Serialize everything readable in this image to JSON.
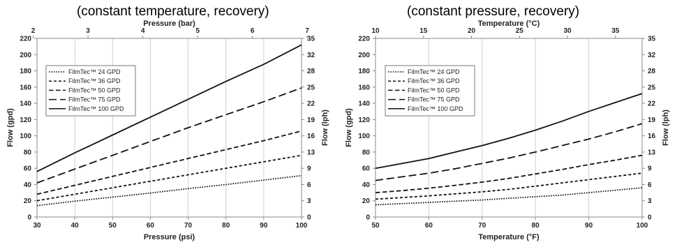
{
  "captions": {
    "left": "(constant temperature, recovery)",
    "right": "(constant pressure, recovery)"
  },
  "chart_data": [
    {
      "type": "line",
      "title": "(constant temperature, recovery)",
      "xlabel": "Pressure (psi)",
      "x2label": "Pressure (bar)",
      "ylabel": "Flow (gpd)",
      "y2label": "Flow (lph)",
      "xlim": [
        30,
        100
      ],
      "ylim": [
        0,
        220
      ],
      "xticks": [
        30,
        40,
        50,
        60,
        70,
        80,
        90,
        100
      ],
      "yticks": [
        0,
        20,
        40,
        60,
        80,
        100,
        120,
        140,
        160,
        180,
        200,
        220
      ],
      "x2ticks": [
        "2",
        "3",
        "4",
        "5",
        "6",
        "7"
      ],
      "x2tick_at_x": [
        29.0,
        43.5,
        58.0,
        72.5,
        87.0,
        101.5
      ],
      "y2ticks": [
        "0",
        "3",
        "6",
        "9",
        "13",
        "16",
        "19",
        "22",
        "25",
        "28",
        "32",
        "35"
      ],
      "grid": "vertical",
      "legend_position": "upper-left",
      "x": [
        30,
        40,
        50,
        60,
        70,
        80,
        90,
        100
      ],
      "series": [
        {
          "name": "FilmTec™ 24 GPD",
          "dash": "dotted",
          "values": [
            14,
            19.5,
            24.5,
            29.5,
            35,
            40,
            45.5,
            51
          ]
        },
        {
          "name": "FilmTec™ 36 GPD",
          "dash": "short-dash",
          "values": [
            20,
            28,
            36,
            44,
            52,
            60,
            68,
            76
          ]
        },
        {
          "name": "FilmTec™ 50 GPD",
          "dash": "dash",
          "values": [
            28,
            39,
            50,
            61,
            72,
            83,
            94,
            106
          ]
        },
        {
          "name": "FilmTec™ 75 GPD",
          "dash": "long-dash",
          "values": [
            42,
            59,
            76,
            93,
            110,
            126,
            142,
            159
          ]
        },
        {
          "name": "FilmTec™ 100 GPD",
          "dash": "solid",
          "values": [
            56,
            79,
            101,
            123,
            145,
            167,
            188,
            212
          ]
        }
      ]
    },
    {
      "type": "line",
      "title": "(constant pressure, recovery)",
      "xlabel": "Temperature (°F)",
      "x2label": "Temperature (°C)",
      "ylabel": "Flow (gpd)",
      "y2label": "Flow (lph)",
      "xlim": [
        50,
        100
      ],
      "ylim": [
        0,
        220
      ],
      "xticks": [
        50,
        60,
        70,
        80,
        90,
        100
      ],
      "yticks": [
        0,
        20,
        40,
        60,
        80,
        100,
        120,
        140,
        160,
        180,
        200,
        220
      ],
      "x2ticks": [
        "10",
        "15",
        "20",
        "25",
        "30",
        "35"
      ],
      "x2tick_at_x": [
        50,
        59,
        68,
        77,
        86,
        95
      ],
      "y2ticks": [
        "0",
        "3",
        "6",
        "9",
        "13",
        "16",
        "19",
        "22",
        "25",
        "28",
        "32",
        "35"
      ],
      "grid": "vertical",
      "legend_position": "upper-left",
      "x": [
        50,
        55,
        60,
        65,
        70,
        75,
        80,
        85,
        90,
        95,
        100
      ],
      "series": [
        {
          "name": "FilmTec™ 24 GPD",
          "dash": "dotted",
          "values": [
            15,
            16.5,
            18,
            19.5,
            21,
            23,
            25,
            27,
            30,
            33,
            36
          ]
        },
        {
          "name": "FilmTec™ 36 GPD",
          "dash": "short-dash",
          "values": [
            22,
            24,
            26,
            28.5,
            31,
            34,
            38,
            42,
            46,
            50,
            54
          ]
        },
        {
          "name": "FilmTec™ 50 GPD",
          "dash": "dash",
          "values": [
            30,
            32.5,
            35.5,
            39,
            43,
            47.5,
            53,
            58.5,
            64.5,
            70,
            76
          ]
        },
        {
          "name": "FilmTec™ 75 GPD",
          "dash": "long-dash",
          "values": [
            45,
            49.5,
            54,
            59.5,
            66,
            72.5,
            80,
            88,
            96,
            105,
            115
          ]
        },
        {
          "name": "FilmTec™ 100 GPD",
          "dash": "solid",
          "values": [
            60,
            66,
            72,
            80,
            88,
            97,
            107,
            118,
            130,
            141,
            152
          ]
        }
      ]
    }
  ]
}
